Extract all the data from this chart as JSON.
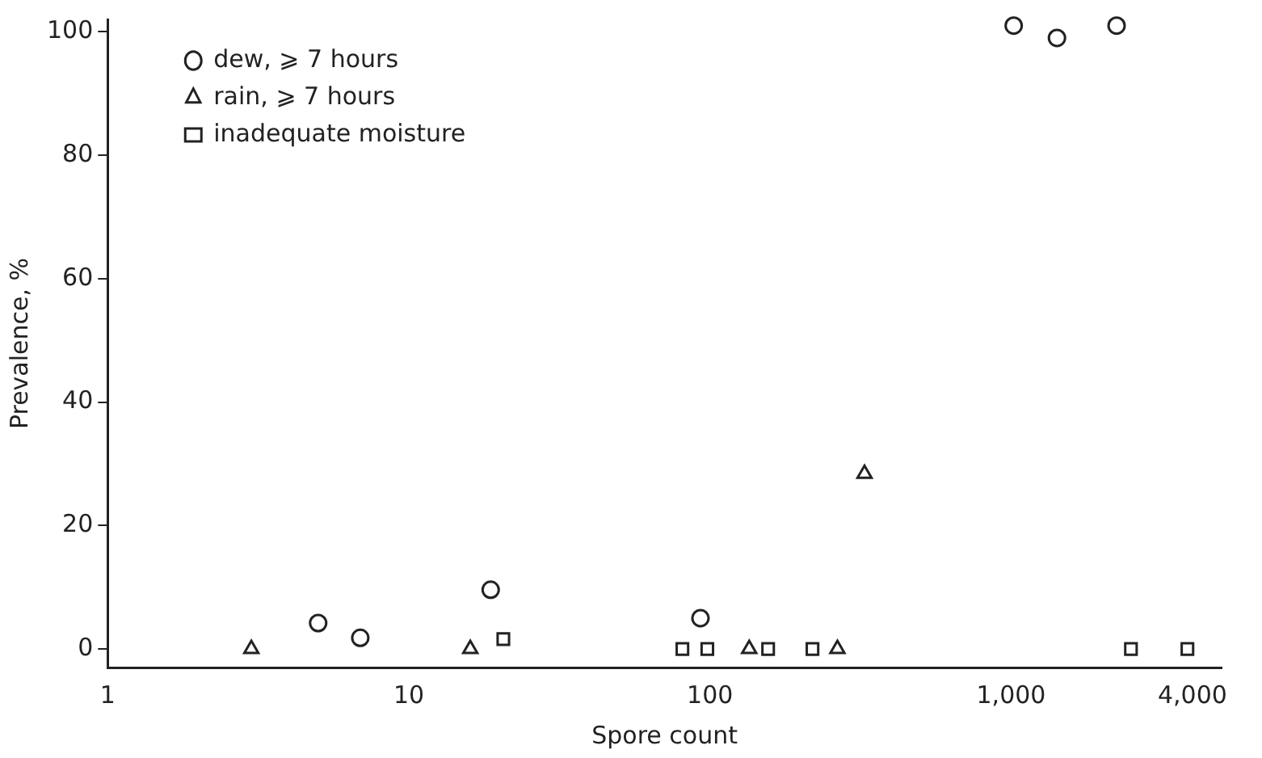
{
  "chart_data": {
    "type": "scatter",
    "xlabel": "Spore count",
    "ylabel": "Prevalence, %",
    "log": "x",
    "xlim": [
      1,
      5000
    ],
    "ylim": [
      -3,
      102
    ],
    "xticks": [
      1,
      10,
      100,
      {
        "value": 1000,
        "label": "1,000"
      },
      {
        "value": 4000,
        "label": "4,000"
      }
    ],
    "yticks": [
      0,
      20,
      40,
      60,
      80,
      100
    ],
    "grid": false,
    "legend": "top left",
    "series": [
      {
        "name": "dew, ⩾ 7 hours",
        "color": "#222222",
        "marker": "circle",
        "x": [
          5,
          6.9,
          18.7,
          93,
          1020,
          1420,
          2240
        ],
        "values": [
          4.2,
          1.8,
          9.6,
          5,
          101,
          99,
          101
        ]
      },
      {
        "name": "rain, ⩾ 7 hours",
        "color": "#222222",
        "marker": "triangle",
        "x": [
          3,
          16,
          135,
          265,
          326
        ],
        "values": [
          0,
          0,
          0,
          0,
          28.4
        ]
      },
      {
        "name": "inadequate moisture",
        "color": "#222222",
        "marker": "square",
        "x": [
          20.6,
          81,
          98,
          156,
          219,
          2500,
          3850
        ],
        "values": [
          1.6,
          0,
          0,
          0,
          0,
          0,
          0
        ]
      }
    ]
  }
}
